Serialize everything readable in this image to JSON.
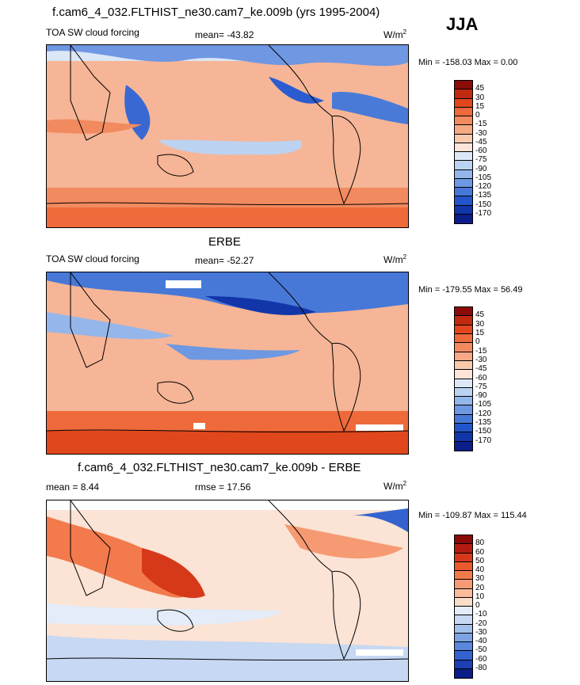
{
  "season": "JJA",
  "panels": [
    {
      "title": "f.cam6_4_032.FLTHIST_ne30.cam7_ke.009b (yrs 1995-2004)",
      "left_label": "TOA SW cloud forcing",
      "mid_label": "mean= -43.82",
      "units": "W/m",
      "units_sup": "2",
      "minmax": "Min = -158.03 Max =   0.00",
      "colorbar": {
        "ticks": [
          "45",
          "30",
          "15",
          "0",
          "-15",
          "-30",
          "-45",
          "-60",
          "-75",
          "-90",
          "-105",
          "-120",
          "-135",
          "-150",
          "-170"
        ],
        "colors": [
          "#8b0a0a",
          "#c02a10",
          "#e0471c",
          "#ee6a3a",
          "#f28a5f",
          "#f5a986",
          "#f9c9ae",
          "#fbe5d8",
          "#dde8f7",
          "#bcd2f1",
          "#95b6ea",
          "#6e98e2",
          "#4778d8",
          "#2255cc",
          "#1236aa",
          "#0a1d88"
        ]
      }
    },
    {
      "title": "ERBE",
      "left_label": "TOA SW cloud forcing",
      "mid_label": "mean= -52.27",
      "units": "W/m",
      "units_sup": "2",
      "minmax": "Min = -179.55 Max =  56.49",
      "colorbar": {
        "ticks": [
          "45",
          "30",
          "15",
          "0",
          "-15",
          "-30",
          "-45",
          "-60",
          "-75",
          "-90",
          "-105",
          "-120",
          "-135",
          "-150",
          "-170"
        ],
        "colors": [
          "#8b0a0a",
          "#c02a10",
          "#e0471c",
          "#ee6a3a",
          "#f28a5f",
          "#f5a986",
          "#f9c9ae",
          "#fbe5d8",
          "#dde8f7",
          "#bcd2f1",
          "#95b6ea",
          "#6e98e2",
          "#4778d8",
          "#2255cc",
          "#1236aa",
          "#0a1d88"
        ]
      }
    },
    {
      "title": "f.cam6_4_032.FLTHIST_ne30.cam7_ke.009b - ERBE",
      "left_label": "mean =   8.44",
      "mid_label": "rmse =  17.56",
      "units": "W/m",
      "units_sup": "2",
      "minmax": "Min = -109.87 Max = 115.44",
      "colorbar": {
        "ticks": [
          "80",
          "60",
          "50",
          "40",
          "30",
          "20",
          "10",
          "0",
          "-10",
          "-20",
          "-30",
          "-40",
          "-50",
          "-60",
          "-80"
        ],
        "colors": [
          "#8b0a0a",
          "#b41c10",
          "#d6391a",
          "#e95a2c",
          "#f27a4c",
          "#f59a72",
          "#f8bb9c",
          "#fbdcca",
          "#e3ecf8",
          "#c6d8f2",
          "#a3c0ec",
          "#7ea3e4",
          "#5a86db",
          "#3463d0",
          "#1a40b4",
          "#0a1d88"
        ]
      }
    }
  ]
}
